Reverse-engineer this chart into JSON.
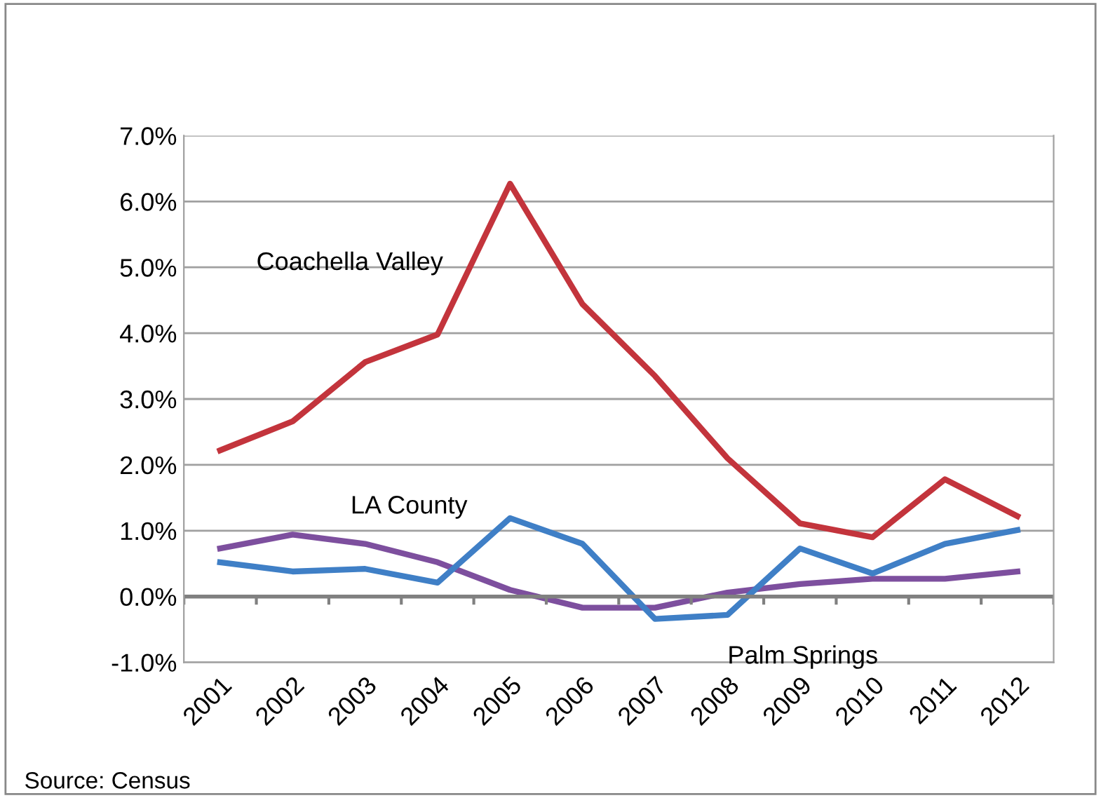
{
  "chart_data": {
    "type": "line",
    "categories": [
      "2001",
      "2002",
      "2003",
      "2004",
      "2005",
      "2006",
      "2007",
      "2008",
      "2009",
      "2010",
      "2011",
      "2012"
    ],
    "series": [
      {
        "name": "Coachella Valley",
        "color": "#c3343c",
        "values": [
          2.22,
          2.66,
          3.56,
          3.98,
          6.27,
          4.44,
          3.35,
          2.1,
          1.11,
          0.9,
          1.78,
          1.22
        ]
      },
      {
        "name": "LA County",
        "color": "#7d4f9e",
        "values": [
          0.73,
          0.94,
          0.8,
          0.52,
          0.1,
          -0.17,
          -0.17,
          0.06,
          0.19,
          0.27,
          0.27,
          0.38
        ]
      },
      {
        "name": "Palm Springs",
        "color": "#3f7fc6",
        "values": [
          0.52,
          0.38,
          0.42,
          0.21,
          1.19,
          0.8,
          -0.34,
          -0.28,
          0.73,
          0.35,
          0.8,
          1.01
        ]
      }
    ],
    "ylim": [
      -1.0,
      7.0
    ],
    "yticks": [
      {
        "value": -1.0,
        "label": "-1.0%"
      },
      {
        "value": 0,
        "label": "0.0%"
      },
      {
        "value": 1.0,
        "label": "1.0%"
      },
      {
        "value": 2.0,
        "label": "2.0%"
      },
      {
        "value": 3.0,
        "label": "3.0%"
      },
      {
        "value": 4.0,
        "label": "4.0%"
      },
      {
        "value": 5.0,
        "label": "5.0%"
      },
      {
        "value": 6.0,
        "label": "6.0%"
      },
      {
        "value": 7.0,
        "label": "7.0%"
      }
    ],
    "grid": "y",
    "legend": false,
    "marker": "none",
    "line_style": "solid",
    "annotations": [
      "Source: Census"
    ]
  }
}
